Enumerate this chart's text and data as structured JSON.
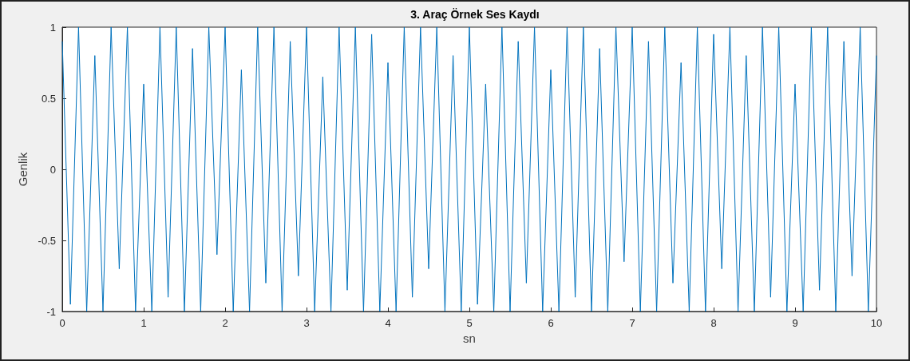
{
  "chart_data": {
    "type": "line",
    "title": "3. Araç Örnek Ses Kaydı",
    "xlabel": "sn",
    "ylabel": "Genlik",
    "x": [
      0,
      0.1,
      0.2,
      0.3,
      0.4,
      0.5,
      0.6,
      0.7,
      0.8,
      0.9,
      1,
      1.1,
      1.2,
      1.3,
      1.4,
      1.5,
      1.6,
      1.7,
      1.8,
      1.9,
      2,
      2.1,
      2.2,
      2.3,
      2.4,
      2.5,
      2.6,
      2.7,
      2.8,
      2.9,
      3,
      3.1,
      3.2,
      3.3,
      3.4,
      3.5,
      3.6,
      3.7,
      3.8,
      3.9,
      4,
      4.1,
      4.2,
      4.3,
      4.4,
      4.5,
      4.6,
      4.7,
      4.8,
      4.9,
      5,
      5.1,
      5.2,
      5.3,
      5.4,
      5.5,
      5.6,
      5.7,
      5.8,
      5.9,
      6,
      6.1,
      6.2,
      6.3,
      6.4,
      6.5,
      6.6,
      6.7,
      6.8,
      6.9,
      7,
      7.1,
      7.2,
      7.3,
      7.4,
      7.5,
      7.6,
      7.7,
      7.8,
      7.9,
      8,
      8.1,
      8.2,
      8.3,
      8.4,
      8.5,
      8.6,
      8.7,
      8.8,
      8.9,
      9,
      9.1,
      9.2,
      9.3,
      9.4,
      9.5,
      9.6,
      9.7,
      9.8,
      9.9,
      10
    ],
    "series": [
      {
        "color": "#0072bd",
        "values": [
          0.9,
          -0.95,
          1,
          -1,
          0.8,
          -1,
          1,
          -0.7,
          1,
          -1,
          0.6,
          -1,
          1,
          -0.9,
          1,
          -1,
          0.85,
          -1,
          1,
          -0.6,
          1,
          -1,
          0.7,
          -1,
          1,
          -0.8,
          1,
          -1,
          0.9,
          -0.75,
          1,
          -1,
          0.65,
          -1,
          1,
          -0.85,
          1,
          -1,
          0.95,
          -1,
          0.75,
          -1,
          1,
          -0.9,
          1,
          -0.7,
          1,
          -1,
          0.8,
          -1,
          1,
          -0.95,
          0.6,
          -1,
          1,
          -1,
          0.9,
          -0.8,
          1,
          -1,
          0.7,
          -1,
          1,
          -0.9,
          1,
          -1,
          0.85,
          -1,
          1,
          -0.65,
          1,
          -1,
          0.9,
          -1,
          1,
          -0.8,
          0.75,
          -1,
          1,
          -1,
          0.95,
          -0.7,
          1,
          -1,
          0.8,
          -1,
          1,
          -0.9,
          1,
          -1,
          0.6,
          -1,
          1,
          -0.85,
          1,
          -1,
          0.9,
          -0.75,
          1,
          -1,
          0.8
        ]
      }
    ],
    "xlim": [
      0,
      10
    ],
    "xticks": [
      0,
      1,
      2,
      3,
      4,
      5,
      6,
      7,
      8,
      9,
      10
    ],
    "ylim": [
      -1,
      1
    ],
    "yticks": [
      -1,
      -0.5,
      0,
      0.5,
      1
    ],
    "grid": false,
    "marker": "none",
    "line_style": "solid"
  }
}
